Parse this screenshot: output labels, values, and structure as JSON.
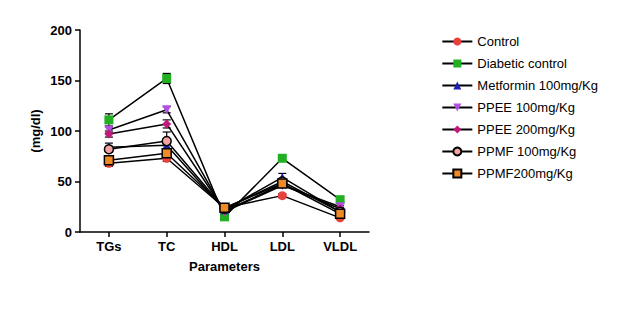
{
  "chart_data": {
    "type": "line",
    "x_label": "Parameters",
    "y_label": "(mg/dl)",
    "categories": [
      "TGs",
      "TC",
      "HDL",
      "LDL",
      "VLDL"
    ],
    "ylim": [
      0,
      200
    ],
    "yticks": [
      0,
      50,
      100,
      150,
      200
    ],
    "grid": false,
    "legend": "right",
    "series": [
      {
        "name": "Control",
        "color": "#e8413c",
        "marker": "circle",
        "values": [
          68,
          73,
          24,
          36,
          14
        ],
        "errors": [
          3,
          3,
          1,
          2,
          1
        ]
      },
      {
        "name": "Diabetic control",
        "color": "#22b022",
        "marker": "square",
        "values": [
          111,
          152,
          15,
          73,
          32
        ],
        "errors": [
          6,
          5,
          1,
          2,
          2
        ]
      },
      {
        "name": "Metformin 100mg/Kg",
        "color": "#1f1fb4",
        "marker": "triangle",
        "values": [
          84,
          86,
          22,
          54,
          20
        ],
        "errors": [
          4,
          4,
          1,
          4,
          1
        ]
      },
      {
        "name": "PPEE 100mg/Kg",
        "color": "#b34fe0",
        "marker": "triangle-down",
        "values": [
          101,
          121,
          20,
          46,
          25
        ],
        "errors": [
          3,
          3,
          1,
          2,
          1
        ]
      },
      {
        "name": "PPEE 200mg/Kg",
        "color": "#c2187a",
        "marker": "diamond",
        "values": [
          97,
          107,
          21,
          47,
          23
        ],
        "errors": [
          3,
          4,
          1,
          2,
          1
        ]
      },
      {
        "name": "PPMF 100mg/Kg",
        "color": "#f4a3a3",
        "marker": "circle",
        "values": [
          82,
          90,
          23,
          50,
          20
        ],
        "errors": [
          3,
          9,
          1,
          3,
          1
        ]
      },
      {
        "name": "PPMF200mg/Kg",
        "color": "#f08a24",
        "marker": "square",
        "values": [
          71,
          78,
          24,
          48,
          18
        ],
        "errors": [
          3,
          3,
          1,
          2,
          1
        ]
      }
    ]
  }
}
